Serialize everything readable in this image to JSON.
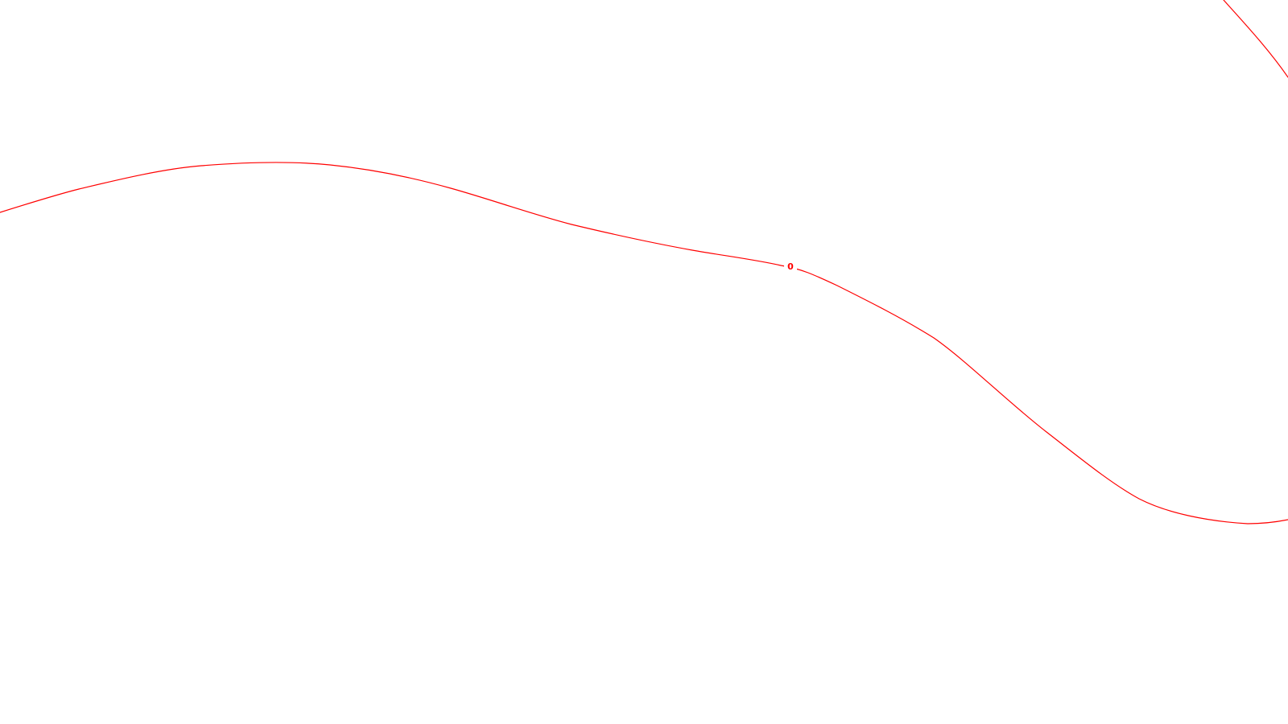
{
  "map": {
    "line_color": "#ff0000",
    "background_color": "#ffffff",
    "features": [
      {
        "type": "contour-line",
        "label": "0"
      },
      {
        "type": "contour-line",
        "label": ""
      }
    ]
  }
}
